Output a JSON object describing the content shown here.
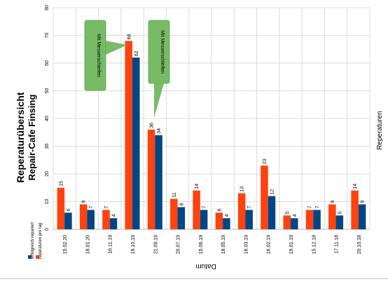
{
  "chart_data": {
    "type": "bar",
    "title": "Reperaturübersicht",
    "subtitle": "Repair-Cafe Finsing",
    "xlabel": "Datum",
    "ylabel": "Reperaturen",
    "ylim": [
      0,
      80
    ],
    "yticks": [
      0,
      10,
      20,
      30,
      40,
      50,
      60,
      70,
      80
    ],
    "grid": true,
    "legend_position": "bottom-left",
    "categories": [
      "15.02.20",
      "18.01.20",
      "16.11.19",
      "19.10.19",
      "21.09.19",
      "20.07.19",
      "15.06.19",
      "18.05.19",
      "16.03.19",
      "16.02.19",
      "19.01.19",
      "15.12.18",
      "17.11.18",
      "20.10.18"
    ],
    "series": [
      {
        "name": "reperaturen pro tag",
        "color": "#ff420e",
        "values": [
          15,
          9,
          7,
          68,
          36,
          11,
          14,
          6,
          13,
          23,
          5,
          7,
          9,
          14
        ]
      },
      {
        "name": "erfolgreich repariert",
        "color": "#004586",
        "values": [
          6,
          7,
          4,
          62,
          34,
          8,
          7,
          4,
          7,
          12,
          4,
          7,
          5,
          9
        ]
      }
    ],
    "annotations": [
      {
        "text": "Mit Messerschleifen",
        "category": "19.10.19"
      },
      {
        "text": "Mit Messerschleifen",
        "category": "21.09.19"
      }
    ]
  },
  "colors": {
    "callout_fill": "#77bc65",
    "callout_stroke": "#5a9a4d",
    "grid": "#dcdcdc",
    "axis": "#b3b3b3"
  }
}
